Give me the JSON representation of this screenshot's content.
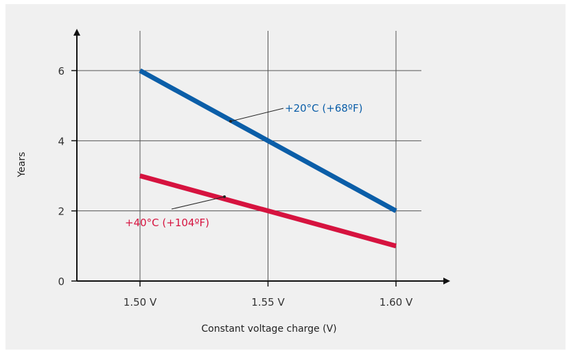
{
  "chart_data": {
    "type": "line",
    "xlabel": "Constant voltage charge  (V)",
    "ylabel": "Years",
    "x_ticks": [
      {
        "value": 1.5,
        "label": "1.50 V"
      },
      {
        "value": 1.55,
        "label": "1.55 V"
      },
      {
        "value": 1.6,
        "label": "1.60 V"
      }
    ],
    "y_ticks": [
      {
        "value": 0,
        "label": "0"
      },
      {
        "value": 2,
        "label": "2"
      },
      {
        "value": 4,
        "label": "4"
      },
      {
        "value": 6,
        "label": "6"
      }
    ],
    "xlim": [
      1.475,
      1.62
    ],
    "ylim": [
      0,
      7
    ],
    "grid": true,
    "series": [
      {
        "name": "+20°C  (+68ºF)",
        "color": "#0b5ea8",
        "x": [
          1.5,
          1.6
        ],
        "y": [
          6,
          2
        ]
      },
      {
        "name": "+40°C  (+104ºF)",
        "color": "#d6133f",
        "x": [
          1.5,
          1.6
        ],
        "y": [
          3,
          1
        ]
      }
    ]
  }
}
